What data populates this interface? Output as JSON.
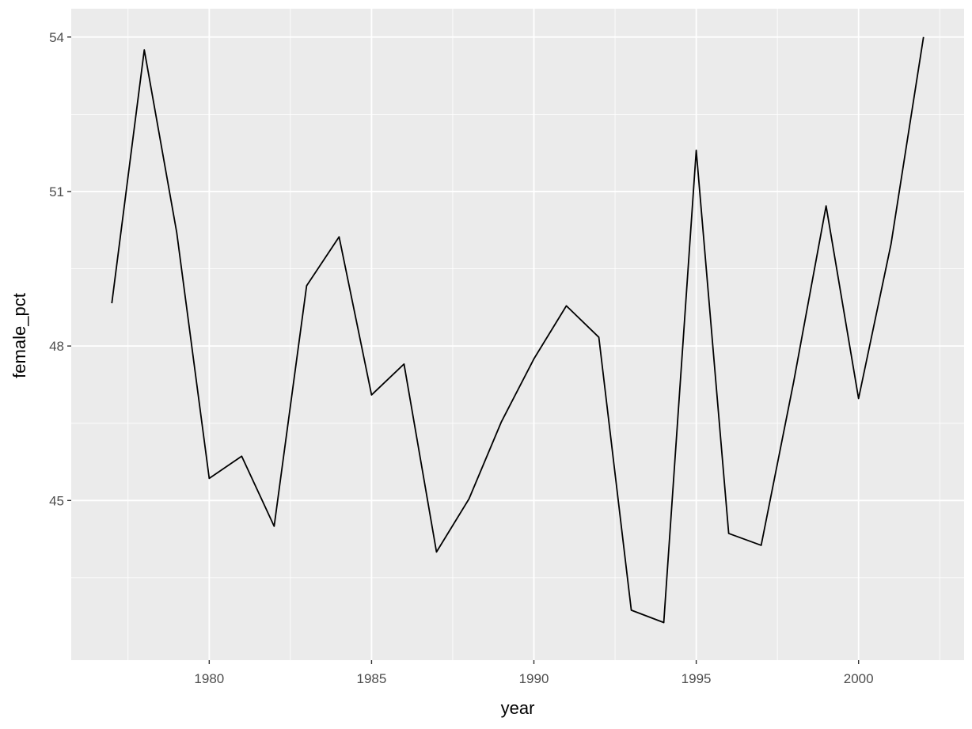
{
  "chart_data": {
    "type": "line",
    "xlabel": "year",
    "ylabel": "female_pct",
    "xlim": [
      1975.75,
      2003.25
    ],
    "ylim": [
      41.9,
      54.55
    ],
    "x_ticks": [
      1980,
      1985,
      1990,
      1995,
      2000
    ],
    "x_tick_labels": [
      "1980",
      "1985",
      "1990",
      "1995",
      "2000"
    ],
    "y_ticks": [
      45,
      48,
      51,
      54
    ],
    "y_tick_labels": [
      "45",
      "48",
      "51",
      "54"
    ],
    "grid": true,
    "series": [
      {
        "color": "#000000",
        "x": [
          1977,
          1978,
          1979,
          1980,
          1981,
          1982,
          1983,
          1984,
          1985,
          1986,
          1987,
          1988,
          1989,
          1990,
          1991,
          1992,
          1993,
          1994,
          1995,
          1996,
          1997,
          1998,
          1999,
          2000,
          2001,
          2002
        ],
        "y": [
          48.83,
          53.75,
          50.2,
          45.43,
          45.86,
          44.5,
          49.17,
          50.12,
          47.05,
          47.65,
          44.0,
          45.03,
          46.53,
          47.75,
          48.78,
          48.17,
          42.87,
          42.63,
          51.8,
          44.36,
          44.13,
          47.3,
          50.72,
          46.98,
          49.98,
          54.0
        ]
      }
    ]
  }
}
